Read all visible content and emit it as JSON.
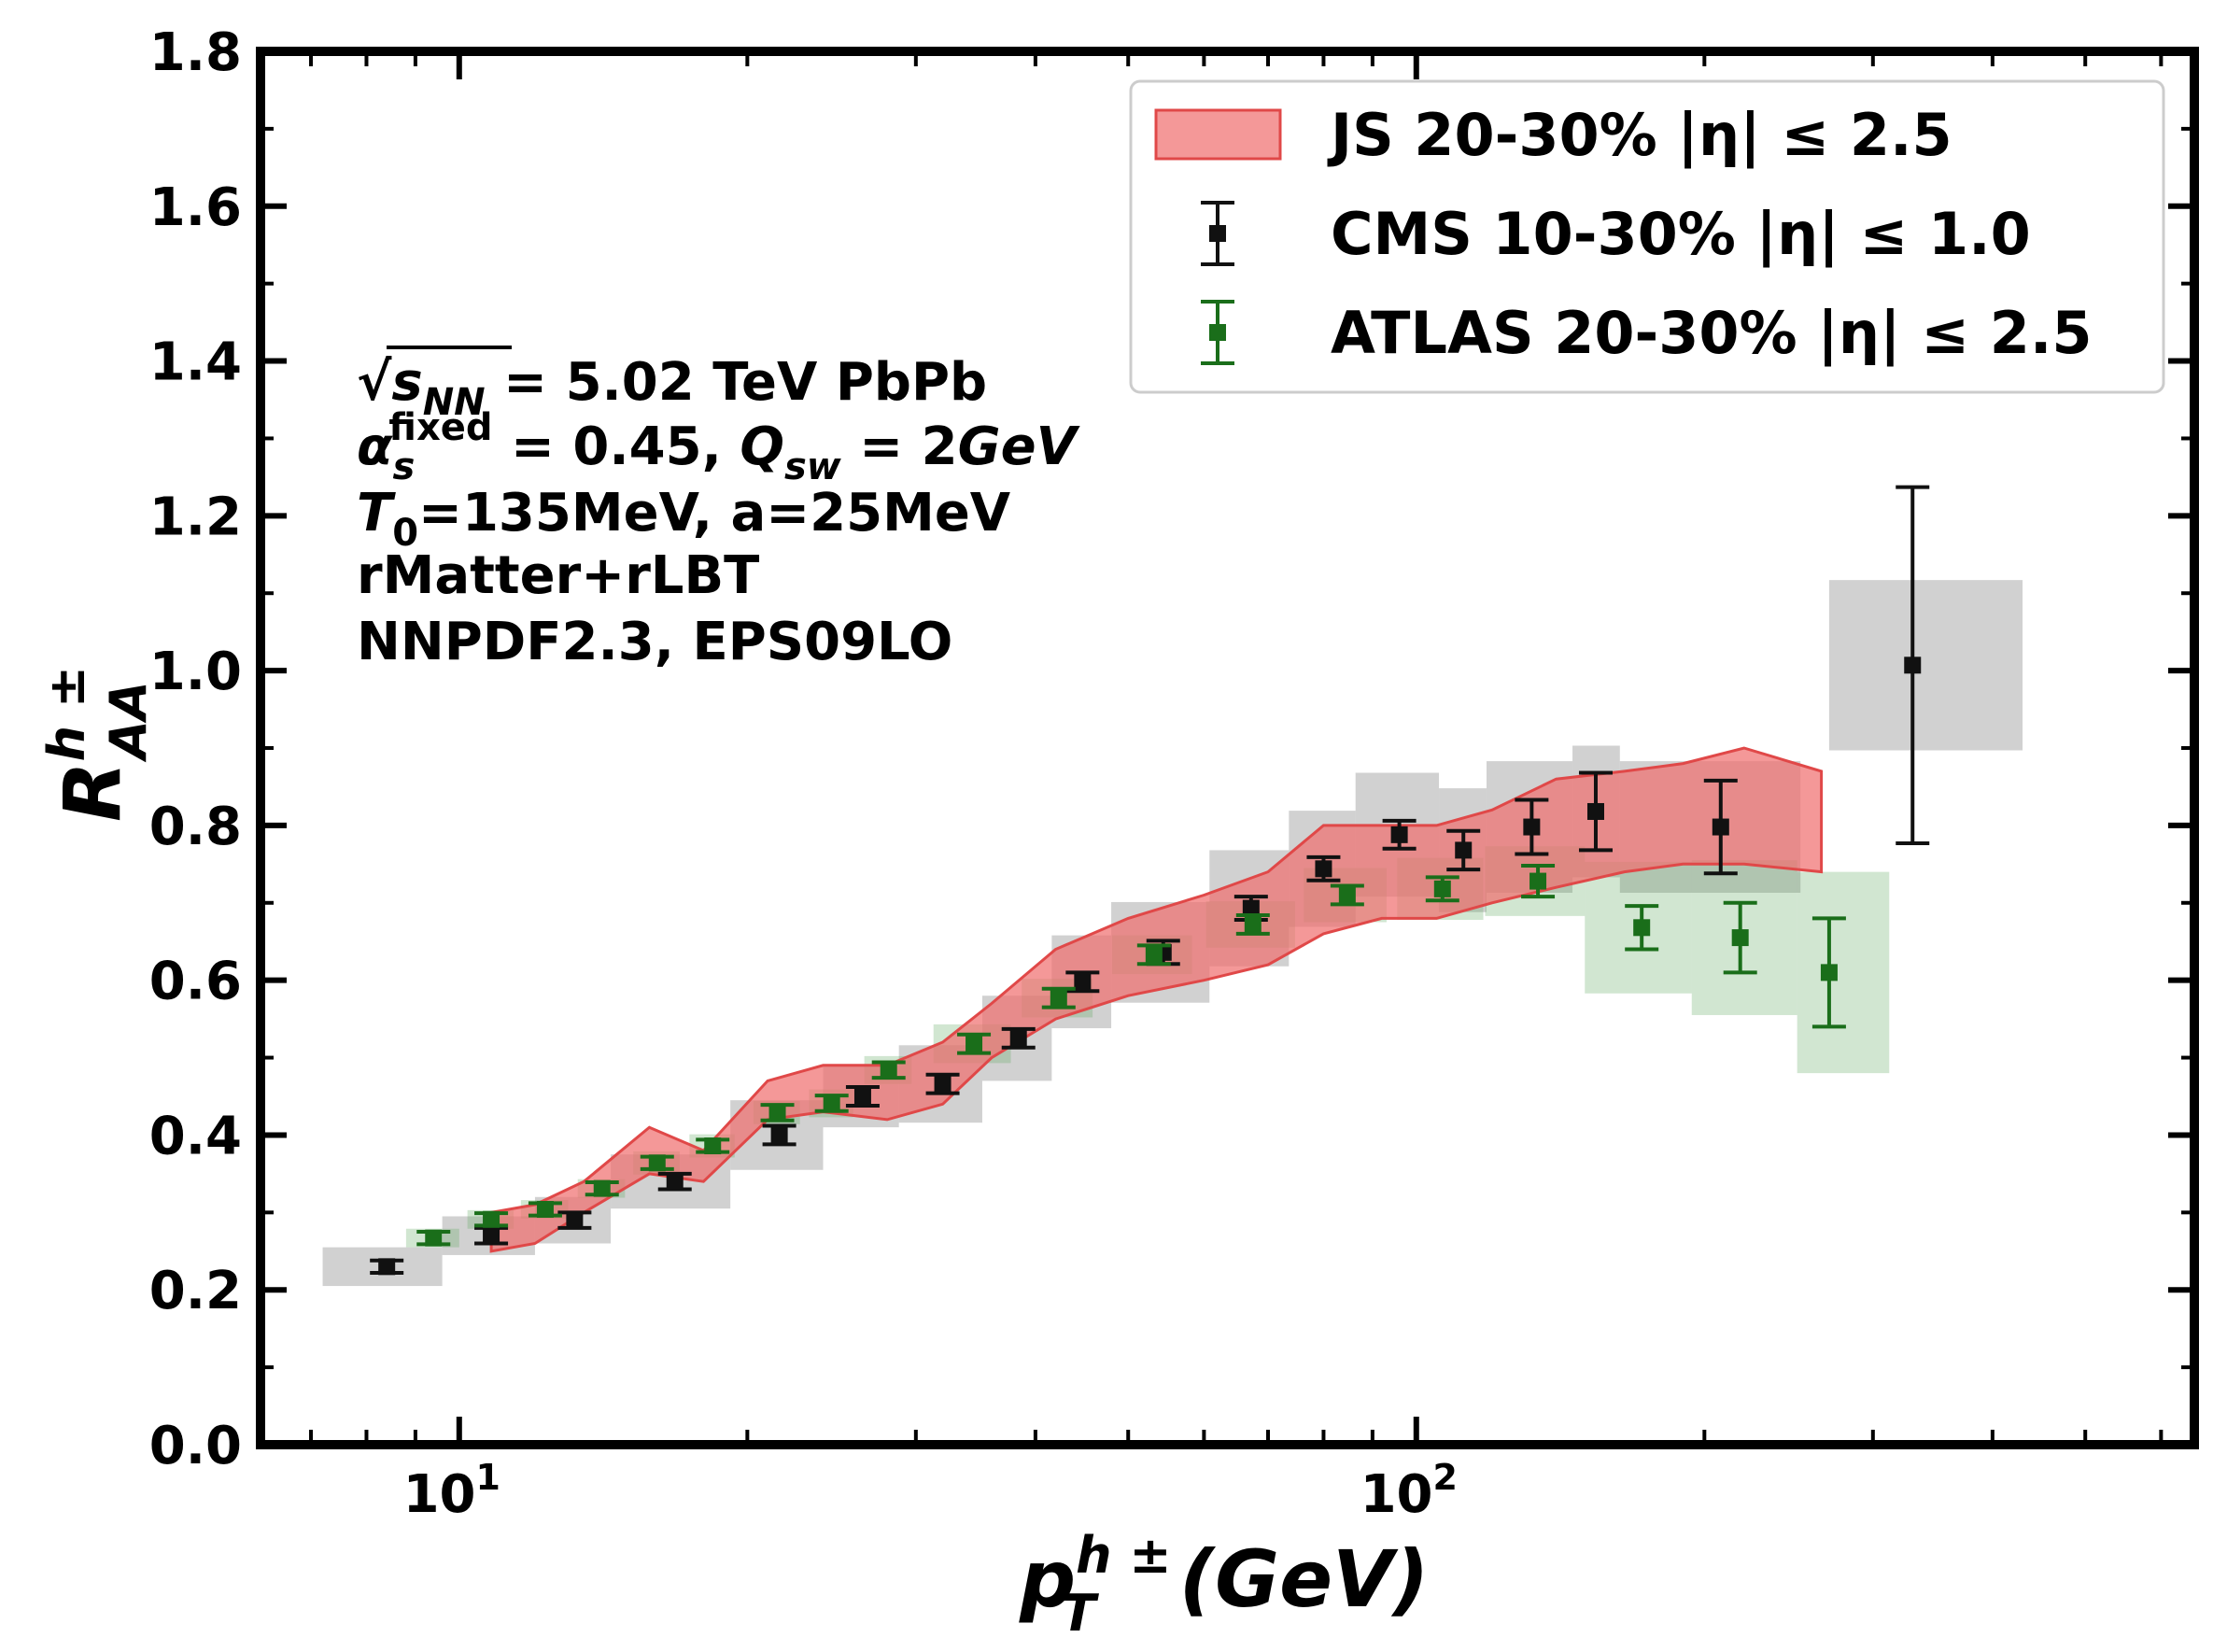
{
  "chart_data": {
    "type": "scatter",
    "xscale": "log",
    "xlim": [
      6.2,
      650
    ],
    "ylim": [
      0.0,
      1.8
    ],
    "yticks": [
      "0.0",
      "0.2",
      "0.4",
      "0.6",
      "0.8",
      "1.0",
      "1.2",
      "1.4",
      "1.6",
      "1.8"
    ],
    "xticks": [
      {
        "value": 10,
        "base": "10",
        "exp": "1"
      },
      {
        "value": 100,
        "base": "10",
        "exp": "2"
      }
    ],
    "xlabel": {
      "main": "p",
      "sup": "h ±",
      "sub": "T",
      "unit": "(GeV)"
    },
    "ylabel": {
      "main": "R",
      "sup": "h ±",
      "sub": "AA"
    },
    "legend_position": "top-right",
    "legend": [
      {
        "label": "JS 20-30% |η| ≤ 2.5",
        "kind": "band",
        "color": "#f07070"
      },
      {
        "label": "CMS 10-30% |η| ≤ 1.0",
        "kind": "errorbar",
        "color": "#111111"
      },
      {
        "label": "ATLAS 20-30% |η| ≤ 2.5",
        "kind": "errorbar",
        "color": "#1a6e1a"
      }
    ],
    "annotations": [
      {
        "line": "√s_NN = 5.02 TeV PbPb",
        "parts": [
          {
            "t": "√"
          },
          {
            "t": "s",
            "it": true,
            "over": true
          },
          {
            "t": "NN",
            "sub": true,
            "it": true,
            "over": true
          },
          {
            "t": " = 5.02 TeV PbPb"
          }
        ]
      },
      {
        "line": "α_s^fixed = 0.45, Q_sw = 2GeV",
        "parts": [
          {
            "t": "α",
            "it": true
          },
          {
            "t": "s",
            "sub": true,
            "it": true
          },
          {
            "t": "fixed",
            "sup": true
          },
          {
            "t": " = 0.45, "
          },
          {
            "t": "Q",
            "it": true
          },
          {
            "t": "sw",
            "sub": true,
            "it": true
          },
          {
            "t": " = 2"
          },
          {
            "t": "GeV",
            "it": true
          }
        ]
      },
      {
        "line": "T_0=135MeV, a=25MeV",
        "parts": [
          {
            "t": "T",
            "it": true
          },
          {
            "t": "0",
            "sub": true
          },
          {
            "t": "=135MeV, a=25MeV"
          }
        ]
      },
      {
        "line": "rMatter+rLBT",
        "parts": [
          {
            "t": "rMatter+rLBT"
          }
        ]
      },
      {
        "line": "NNPDF2.3, EPS09LO",
        "parts": [
          {
            "t": "NNPDF2.3, EPS09LO"
          }
        ]
      }
    ],
    "band": {
      "name": "JS 20-30% |η| ≤ 2.5",
      "color": "#f07070",
      "x": [
        10.8,
        12.0,
        13.5,
        15.8,
        18.0,
        21.0,
        24.0,
        28.0,
        32.0,
        36.0,
        42.0,
        50.0,
        60.0,
        70.0,
        80.0,
        92.0,
        105.0,
        120.0,
        140.0,
        165.0,
        190.0,
        220.0,
        265.0
      ],
      "upper": [
        0.3,
        0.31,
        0.34,
        0.41,
        0.38,
        0.47,
        0.49,
        0.49,
        0.52,
        0.57,
        0.64,
        0.68,
        0.71,
        0.74,
        0.8,
        0.8,
        0.8,
        0.82,
        0.86,
        0.87,
        0.88,
        0.9,
        0.87
      ],
      "lower": [
        0.25,
        0.26,
        0.3,
        0.35,
        0.34,
        0.42,
        0.43,
        0.42,
        0.44,
        0.5,
        0.55,
        0.58,
        0.6,
        0.62,
        0.66,
        0.68,
        0.68,
        0.7,
        0.72,
        0.74,
        0.75,
        0.75,
        0.74
      ]
    },
    "series": [
      {
        "name": "CMS 10-30% |η| ≤ 1.0",
        "color": "#111111",
        "points": [
          {
            "x": 8.4,
            "y": 0.23,
            "err": 0.008,
            "sys_lo": 7.2,
            "sys_hi": 9.6,
            "sys_err": 0.025
          },
          {
            "x": 10.8,
            "y": 0.27,
            "err": 0.01,
            "sys_lo": 9.6,
            "sys_hi": 12.0,
            "sys_err": 0.025
          },
          {
            "x": 13.2,
            "y": 0.29,
            "err": 0.01,
            "sys_lo": 12.0,
            "sys_hi": 14.4,
            "sys_err": 0.03
          },
          {
            "x": 16.8,
            "y": 0.34,
            "err": 0.01,
            "sys_lo": 14.4,
            "sys_hi": 19.2,
            "sys_err": 0.035
          },
          {
            "x": 21.6,
            "y": 0.4,
            "err": 0.012,
            "sys_lo": 19.2,
            "sys_hi": 24.0,
            "sys_err": 0.045
          },
          {
            "x": 26.4,
            "y": 0.45,
            "err": 0.012,
            "sys_lo": 24.0,
            "sys_hi": 28.8,
            "sys_err": 0.04
          },
          {
            "x": 32.0,
            "y": 0.466,
            "err": 0.012,
            "sys_lo": 28.8,
            "sys_hi": 35.2,
            "sys_err": 0.05
          },
          {
            "x": 38.4,
            "y": 0.525,
            "err": 0.012,
            "sys_lo": 35.2,
            "sys_hi": 41.6,
            "sys_err": 0.055
          },
          {
            "x": 44.8,
            "y": 0.598,
            "err": 0.012,
            "sys_lo": 41.6,
            "sys_hi": 48.0,
            "sys_err": 0.06
          },
          {
            "x": 54.4,
            "y": 0.636,
            "err": 0.015,
            "sys_lo": 48.0,
            "sys_hi": 60.8,
            "sys_err": 0.065
          },
          {
            "x": 67.2,
            "y": 0.693,
            "err": 0.015,
            "sys_lo": 60.8,
            "sys_hi": 73.6,
            "sys_err": 0.075
          },
          {
            "x": 80.0,
            "y": 0.744,
            "err": 0.015,
            "sys_lo": 73.6,
            "sys_hi": 86.4,
            "sys_err": 0.075
          },
          {
            "x": 96.0,
            "y": 0.788,
            "err": 0.018,
            "sys_lo": 86.4,
            "sys_hi": 105.6,
            "sys_err": 0.08
          },
          {
            "x": 112.0,
            "y": 0.768,
            "err": 0.025,
            "sys_lo": 105.6,
            "sys_hi": 118.4,
            "sys_err": 0.08
          },
          {
            "x": 132.0,
            "y": 0.798,
            "err": 0.035,
            "sys_lo": 118.4,
            "sys_hi": 145.6,
            "sys_err": 0.085
          },
          {
            "x": 154.0,
            "y": 0.818,
            "err": 0.05,
            "sys_lo": 145.6,
            "sys_hi": 163.2,
            "sys_err": 0.085
          },
          {
            "x": 208.0,
            "y": 0.798,
            "err": 0.06,
            "sys_lo": 163.2,
            "sys_hi": 252.0,
            "sys_err": 0.085
          },
          {
            "x": 330.0,
            "y": 1.007,
            "err": 0.23,
            "sys_lo": 270.0,
            "sys_hi": 430.0,
            "sys_err": 0.11
          }
        ]
      },
      {
        "name": "ATLAS 20-30% |η| ≤ 2.5",
        "color": "#1a6e1a",
        "points": [
          {
            "x": 9.4,
            "y": 0.267,
            "err": 0.008,
            "sys_lo": 8.8,
            "sys_hi": 10.0,
            "sys_err": 0.012
          },
          {
            "x": 10.8,
            "y": 0.291,
            "err": 0.008,
            "sys_lo": 10.2,
            "sys_hi": 11.4,
            "sys_err": 0.012
          },
          {
            "x": 12.3,
            "y": 0.304,
            "err": 0.008,
            "sys_lo": 11.6,
            "sys_hi": 13.0,
            "sys_err": 0.012
          },
          {
            "x": 14.1,
            "y": 0.331,
            "err": 0.008,
            "sys_lo": 13.3,
            "sys_hi": 14.9,
            "sys_err": 0.012
          },
          {
            "x": 16.1,
            "y": 0.364,
            "err": 0.008,
            "sys_lo": 15.2,
            "sys_hi": 17.0,
            "sys_err": 0.015
          },
          {
            "x": 18.4,
            "y": 0.386,
            "err": 0.008,
            "sys_lo": 17.4,
            "sys_hi": 19.4,
            "sys_err": 0.015
          },
          {
            "x": 21.5,
            "y": 0.429,
            "err": 0.01,
            "sys_lo": 20.3,
            "sys_hi": 22.7,
            "sys_err": 0.015
          },
          {
            "x": 24.5,
            "y": 0.441,
            "err": 0.01,
            "sys_lo": 23.2,
            "sys_hi": 25.8,
            "sys_err": 0.018
          },
          {
            "x": 28.1,
            "y": 0.484,
            "err": 0.01,
            "sys_lo": 26.5,
            "sys_hi": 29.7,
            "sys_err": 0.018
          },
          {
            "x": 34.5,
            "y": 0.518,
            "err": 0.012,
            "sys_lo": 31.3,
            "sys_hi": 37.7,
            "sys_err": 0.025
          },
          {
            "x": 42.3,
            "y": 0.577,
            "err": 0.012,
            "sys_lo": 38.7,
            "sys_hi": 45.9,
            "sys_err": 0.025
          },
          {
            "x": 53.2,
            "y": 0.633,
            "err": 0.012,
            "sys_lo": 48.1,
            "sys_hi": 58.3,
            "sys_err": 0.025
          },
          {
            "x": 67.5,
            "y": 0.672,
            "err": 0.012,
            "sys_lo": 60.3,
            "sys_hi": 74.7,
            "sys_err": 0.03
          },
          {
            "x": 84.7,
            "y": 0.71,
            "err": 0.012,
            "sys_lo": 76.3,
            "sys_hi": 93.1,
            "sys_err": 0.035
          },
          {
            "x": 106.5,
            "y": 0.718,
            "err": 0.015,
            "sys_lo": 95.5,
            "sys_hi": 117.5,
            "sys_err": 0.04
          },
          {
            "x": 134.0,
            "y": 0.728,
            "err": 0.02,
            "sys_lo": 118.0,
            "sys_hi": 150.0,
            "sys_err": 0.045
          },
          {
            "x": 172.0,
            "y": 0.668,
            "err": 0.028,
            "sys_lo": 150.0,
            "sys_hi": 194.0,
            "sys_err": 0.085
          },
          {
            "x": 218.0,
            "y": 0.655,
            "err": 0.045,
            "sys_lo": 194.0,
            "sys_hi": 250.0,
            "sys_err": 0.1
          },
          {
            "x": 270.0,
            "y": 0.61,
            "err": 0.07,
            "sys_lo": 250.0,
            "sys_hi": 312.0,
            "sys_err": 0.13
          }
        ]
      }
    ]
  }
}
